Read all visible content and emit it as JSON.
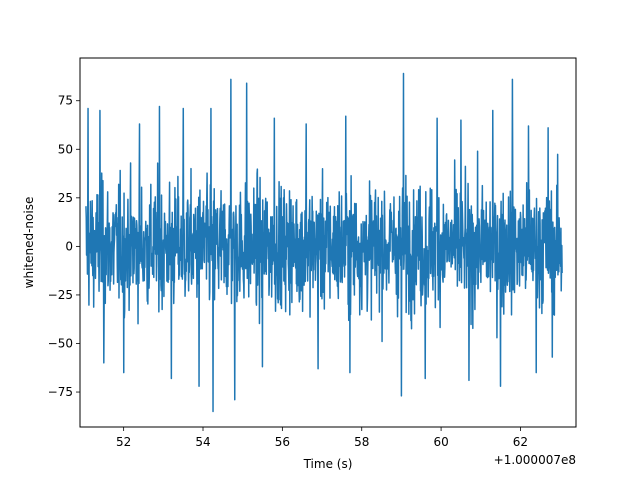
{
  "chart_data": {
    "type": "line",
    "title": "",
    "xlabel": "Time (s)",
    "ylabel": "whitened-noise",
    "x_offset_label": "+1.000007e8",
    "x_tick_labels": [
      "52",
      "54",
      "56",
      "58",
      "60",
      "62"
    ],
    "y_tick_labels": [
      "−75",
      "−50",
      "−25",
      "0",
      "25",
      "50",
      "75"
    ],
    "xlim": [
      100000750.9,
      100000763.4
    ],
    "ylim": [
      -93,
      97
    ],
    "x_ticks": [
      100000752,
      100000754,
      100000756,
      100000758,
      100000760,
      100000762
    ],
    "y_ticks": [
      -75,
      -50,
      -25,
      0,
      25,
      50,
      75
    ],
    "grid": false,
    "series": [
      {
        "color": "#1f77b4",
        "x_range": [
          100000751.05,
          100000763.05
        ],
        "typical_envelope": [
          -40,
          40
        ],
        "upper_extremes": [
          {
            "x": 100000751.1,
            "y": 71
          },
          {
            "x": 100000751.4,
            "y": 70
          },
          {
            "x": 100000752.4,
            "y": 63
          },
          {
            "x": 100000752.9,
            "y": 72
          },
          {
            "x": 100000753.5,
            "y": 71
          },
          {
            "x": 100000754.2,
            "y": 71
          },
          {
            "x": 100000754.7,
            "y": 86
          },
          {
            "x": 100000755.1,
            "y": 84
          },
          {
            "x": 100000755.8,
            "y": 66
          },
          {
            "x": 100000756.6,
            "y": 63
          },
          {
            "x": 100000757.6,
            "y": 67
          },
          {
            "x": 100000759.05,
            "y": 89
          },
          {
            "x": 100000759.9,
            "y": 66
          },
          {
            "x": 100000760.5,
            "y": 65
          },
          {
            "x": 100000761.3,
            "y": 70
          },
          {
            "x": 100000761.8,
            "y": 86
          },
          {
            "x": 100000762.2,
            "y": 62
          },
          {
            "x": 100000762.7,
            "y": 61
          }
        ],
        "lower_extremes": [
          {
            "x": 100000751.5,
            "y": -60
          },
          {
            "x": 100000752.0,
            "y": -65
          },
          {
            "x": 100000753.2,
            "y": -68
          },
          {
            "x": 100000753.9,
            "y": -72
          },
          {
            "x": 100000754.25,
            "y": -85
          },
          {
            "x": 100000754.8,
            "y": -79
          },
          {
            "x": 100000755.5,
            "y": -62
          },
          {
            "x": 100000756.9,
            "y": -63
          },
          {
            "x": 100000757.7,
            "y": -65
          },
          {
            "x": 100000759.0,
            "y": -77
          },
          {
            "x": 100000759.6,
            "y": -68
          },
          {
            "x": 100000760.7,
            "y": -69
          },
          {
            "x": 100000761.5,
            "y": -72
          },
          {
            "x": 100000762.4,
            "y": -65
          },
          {
            "x": 100000762.8,
            "y": -57
          }
        ]
      }
    ]
  }
}
